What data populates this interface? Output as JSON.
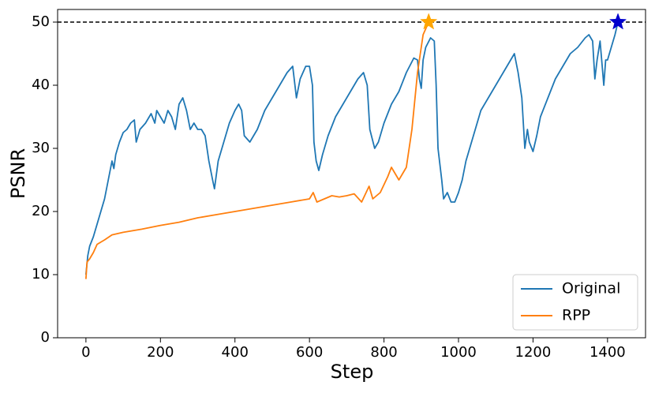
{
  "chart_data": {
    "type": "line",
    "x_label": "Step",
    "y_label": "PSNR",
    "xlim": [
      -76,
      1502
    ],
    "ylim": [
      0,
      52
    ],
    "xticks": [
      0,
      200,
      400,
      600,
      800,
      1000,
      1200,
      1400
    ],
    "yticks": [
      0,
      10,
      20,
      30,
      40,
      50
    ],
    "hline": 50,
    "legend_position": "lower right",
    "series": [
      {
        "name": "Original",
        "color": "#1f77b4",
        "x": [
          0,
          5,
          10,
          20,
          30,
          40,
          50,
          60,
          70,
          75,
          80,
          90,
          100,
          110,
          120,
          130,
          135,
          145,
          160,
          175,
          185,
          190,
          200,
          210,
          220,
          230,
          240,
          250,
          260,
          270,
          280,
          290,
          300,
          310,
          320,
          330,
          340,
          345,
          355,
          370,
          385,
          400,
          410,
          418,
          425,
          440,
          460,
          480,
          500,
          520,
          540,
          555,
          565,
          575,
          590,
          600,
          608,
          612,
          618,
          625,
          635,
          650,
          670,
          690,
          710,
          730,
          745,
          755,
          762,
          775,
          785,
          800,
          820,
          840,
          860,
          880,
          890,
          895,
          900,
          905,
          912,
          925,
          935,
          940,
          945,
          955,
          960,
          970,
          980,
          990,
          1000,
          1010,
          1020,
          1040,
          1060,
          1080,
          1100,
          1120,
          1140,
          1150,
          1160,
          1170,
          1178,
          1185,
          1190,
          1200,
          1210,
          1220,
          1240,
          1260,
          1280,
          1300,
          1320,
          1340,
          1350,
          1360,
          1366,
          1372,
          1380,
          1390,
          1395,
          1400,
          1410,
          1420,
          1428
        ],
        "values": [
          10,
          13,
          14.5,
          16,
          18,
          20,
          22,
          25,
          28,
          26.8,
          29,
          31,
          32.5,
          33,
          34,
          34.5,
          31,
          33,
          34,
          35.5,
          34,
          36,
          35,
          34,
          36,
          35,
          33,
          37,
          38,
          36,
          33,
          34,
          33,
          33,
          32,
          28,
          25,
          23.6,
          28,
          31,
          34,
          36,
          37,
          36,
          32,
          31,
          33,
          36,
          38,
          40,
          42,
          43,
          38,
          41,
          43,
          43,
          40,
          31,
          28,
          26.5,
          29,
          32,
          35,
          37,
          39,
          41,
          42,
          40,
          33,
          30,
          31,
          34,
          37,
          39,
          42,
          44.3,
          44,
          41,
          39.5,
          44,
          46,
          47.5,
          47,
          40,
          30,
          25,
          22,
          23,
          21.5,
          21.5,
          23,
          25,
          28,
          32,
          36,
          38,
          40,
          42,
          44,
          45,
          42,
          38,
          30,
          33,
          31,
          29.5,
          32,
          35,
          38,
          41,
          43,
          45,
          46,
          47.5,
          48,
          47,
          41,
          44,
          47,
          40,
          44,
          44,
          46,
          48,
          50
        ]
      },
      {
        "name": "RPP",
        "color": "#ff7f0e",
        "x": [
          0,
          3,
          10,
          20,
          30,
          50,
          70,
          100,
          150,
          200,
          250,
          300,
          350,
          400,
          450,
          500,
          550,
          600,
          610,
          620,
          640,
          660,
          680,
          700,
          720,
          740,
          760,
          770,
          790,
          810,
          820,
          840,
          860,
          875,
          890,
          905,
          920
        ],
        "values": [
          9.3,
          12,
          12.5,
          13.5,
          14.8,
          15.5,
          16.3,
          16.7,
          17.2,
          17.8,
          18.3,
          19,
          19.5,
          20,
          20.5,
          21,
          21.5,
          22,
          23,
          21.5,
          22,
          22.5,
          22.3,
          22.5,
          22.8,
          21.5,
          24,
          22,
          23,
          25.5,
          27,
          25,
          27,
          33,
          42,
          48,
          50
        ]
      }
    ],
    "markers": [
      {
        "x": 920,
        "y": 50,
        "color": "#ffa500"
      },
      {
        "x": 1428,
        "y": 50,
        "color": "#0000cd"
      }
    ]
  }
}
